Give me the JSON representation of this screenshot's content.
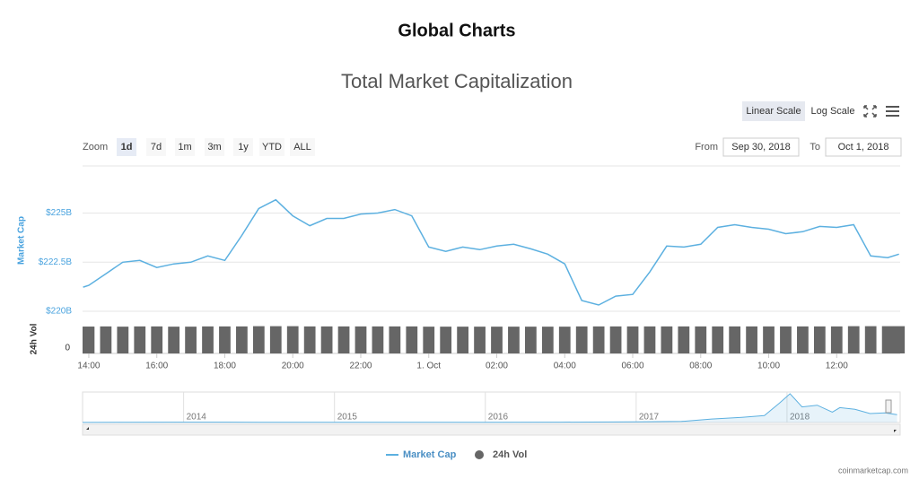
{
  "header": {
    "title": "Global Charts"
  },
  "toolbar": {
    "scale_buttons": [
      "Linear Scale",
      "Log Scale"
    ],
    "zoom_label": "Zoom",
    "zoom_buttons": [
      "1d",
      "7d",
      "1m",
      "3m",
      "1y",
      "YTD",
      "ALL"
    ],
    "zoom_selected": 0,
    "from_label": "From",
    "from": "Sep 30, 2018",
    "to_label": "To",
    "to": "Oct 1, 2018"
  },
  "credit": "coinmarketcap.com",
  "chart_data": [
    {
      "type": "line",
      "title": "Total Market Capitalization",
      "ylabel": "Market Cap",
      "y2label": "24h Vol",
      "log_scale": false,
      "grid": true,
      "x": [
        "2018-09-30 13:50",
        "2018-09-30 14:00",
        "2018-09-30 14:30",
        "2018-09-30 15:00",
        "2018-09-30 15:30",
        "2018-09-30 16:00",
        "2018-09-30 16:30",
        "2018-09-30 17:00",
        "2018-09-30 17:30",
        "2018-09-30 18:00",
        "2018-09-30 18:30",
        "2018-09-30 19:00",
        "2018-09-30 19:30",
        "2018-09-30 20:00",
        "2018-09-30 20:30",
        "2018-09-30 21:00",
        "2018-09-30 21:30",
        "2018-09-30 22:00",
        "2018-09-30 22:30",
        "2018-09-30 23:00",
        "2018-09-30 23:30",
        "2018-10-01 00:00",
        "2018-10-01 00:30",
        "2018-10-01 01:00",
        "2018-10-01 01:30",
        "2018-10-01 02:00",
        "2018-10-01 02:30",
        "2018-10-01 03:00",
        "2018-10-01 03:30",
        "2018-10-01 04:00",
        "2018-10-01 04:30",
        "2018-10-01 05:00",
        "2018-10-01 05:30",
        "2018-10-01 06:00",
        "2018-10-01 06:30",
        "2018-10-01 07:00",
        "2018-10-01 07:30",
        "2018-10-01 08:00",
        "2018-10-01 08:30",
        "2018-10-01 09:00",
        "2018-10-01 09:30",
        "2018-10-01 10:00",
        "2018-10-01 10:30",
        "2018-10-01 11:00",
        "2018-10-01 11:30",
        "2018-10-01 12:00",
        "2018-10-01 12:30",
        "2018-10-01 13:00",
        "2018-10-01 13:30",
        "2018-10-01 13:50"
      ],
      "series": [
        {
          "name": "Market Cap",
          "color": "#5cb0e0",
          "values": [
            221.23,
            221.32,
            221.91,
            222.5,
            222.59,
            222.23,
            222.41,
            222.5,
            222.82,
            222.59,
            223.86,
            225.23,
            225.68,
            224.86,
            224.36,
            224.73,
            224.73,
            224.95,
            225.0,
            225.18,
            224.86,
            223.27,
            223.05,
            223.27,
            223.14,
            223.32,
            223.41,
            223.18,
            222.91,
            222.41,
            220.55,
            220.32,
            220.77,
            220.86,
            222.0,
            223.32,
            223.27,
            223.41,
            224.27,
            224.41,
            224.27,
            224.18,
            223.95,
            224.05,
            224.32,
            224.27,
            224.41,
            222.82,
            222.73,
            222.91
          ]
        },
        {
          "name": "24h Vol",
          "color": "#666666",
          "axis": "y2",
          "values": [
            11.2,
            11.2,
            11.3,
            11.2,
            11.3,
            11.3,
            11.2,
            11.2,
            11.3,
            11.3,
            11.3,
            11.4,
            11.4,
            11.4,
            11.3,
            11.3,
            11.3,
            11.3,
            11.3,
            11.3,
            11.3,
            11.2,
            11.2,
            11.2,
            11.2,
            11.2,
            11.2,
            11.2,
            11.2,
            11.2,
            11.3,
            11.3,
            11.3,
            11.3,
            11.3,
            11.3,
            11.3,
            11.3,
            11.3,
            11.3,
            11.3,
            11.3,
            11.3,
            11.3,
            11.3,
            11.3,
            11.4,
            11.4,
            11.4,
            11.4
          ]
        }
      ],
      "xlim": [
        "2018-09-30 13:49",
        "2018-10-01 13:52"
      ],
      "xticks": [
        {
          "value": "2018-09-30 14:00",
          "label": "14:00"
        },
        {
          "value": "2018-09-30 16:00",
          "label": "16:00"
        },
        {
          "value": "2018-09-30 18:00",
          "label": "18:00"
        },
        {
          "value": "2018-09-30 20:00",
          "label": "20:00"
        },
        {
          "value": "2018-09-30 22:00",
          "label": "22:00"
        },
        {
          "value": "2018-10-01 00:00",
          "label": "1. Oct"
        },
        {
          "value": "2018-10-01 02:00",
          "label": "02:00"
        },
        {
          "value": "2018-10-01 04:00",
          "label": "04:00"
        },
        {
          "value": "2018-10-01 06:00",
          "label": "06:00"
        },
        {
          "value": "2018-10-01 08:00",
          "label": "08:00"
        },
        {
          "value": "2018-10-01 10:00",
          "label": "10:00"
        },
        {
          "value": "2018-10-01 12:00",
          "label": "12:00"
        }
      ],
      "ylim": [
        220,
        227.4
      ],
      "yticks": [
        {
          "value": 220,
          "label": "$220B"
        },
        {
          "value": 222.5,
          "label": "$222.5B"
        },
        {
          "value": 225,
          "label": "$225B"
        }
      ],
      "y2lim": [
        0,
        12
      ],
      "y2ticks": [
        0
      ]
    },
    {
      "type": "area",
      "color": "#5cb0e0",
      "x": [
        2013.33,
        2014,
        2014.5,
        2015,
        2015.5,
        2016,
        2016.5,
        2017,
        2017.3,
        2017.5,
        2017.7,
        2017.85,
        2017.95,
        2018.02,
        2018.1,
        2018.2,
        2018.3,
        2018.35,
        2018.45,
        2018.55,
        2018.65,
        2018.73
      ],
      "values": [
        1.5,
        10,
        8,
        5,
        4,
        7,
        11,
        18,
        30,
        100,
        150,
        200,
        560,
        830,
        450,
        500,
        300,
        430,
        380,
        260,
        280,
        225
      ],
      "xlim": [
        2013.33,
        2018.75
      ],
      "xticks": [
        2014,
        2015,
        2016,
        2017,
        2018
      ],
      "ylim": [
        0,
        880
      ]
    }
  ]
}
